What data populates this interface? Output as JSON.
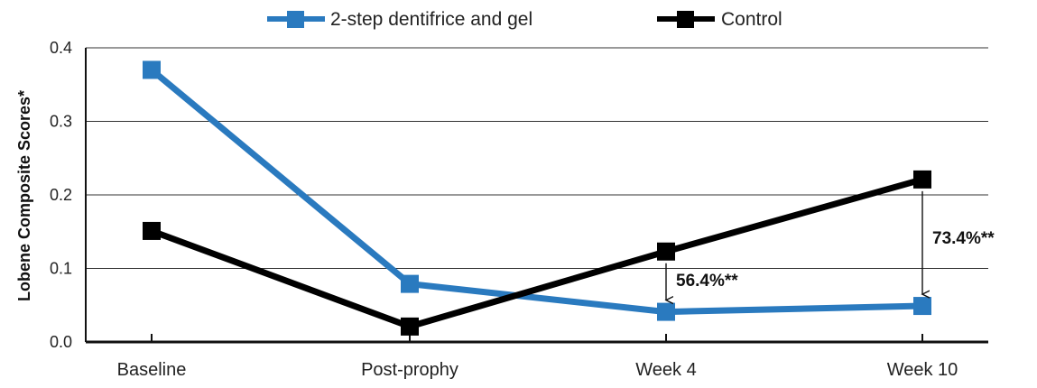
{
  "chart_data": {
    "type": "line",
    "categories": [
      "Baseline",
      "Post-prophy",
      "Week 4",
      "Week 10"
    ],
    "series": [
      {
        "name": "2-step dentifrice and gel",
        "values": [
          0.37,
          0.079,
          0.041,
          0.049
        ],
        "color": "#2a7abf"
      },
      {
        "name": "Control",
        "values": [
          0.151,
          0.021,
          0.123,
          0.221
        ],
        "color": "#000000"
      }
    ],
    "ylabel": "Lobene Composite Scores*",
    "xlabel": "",
    "ylim": [
      0,
      0.4
    ],
    "yticks": [
      "0.0",
      "0.1",
      "0.2",
      "0.3",
      "0.4"
    ],
    "grid": true,
    "legend_position": "top",
    "annotations": [
      {
        "label": "56.4%**",
        "category": "Week 4",
        "from": 0.123,
        "to": 0.041
      },
      {
        "label": "73.4%**",
        "category": "Week 10",
        "from": 0.221,
        "to": 0.049
      }
    ]
  }
}
